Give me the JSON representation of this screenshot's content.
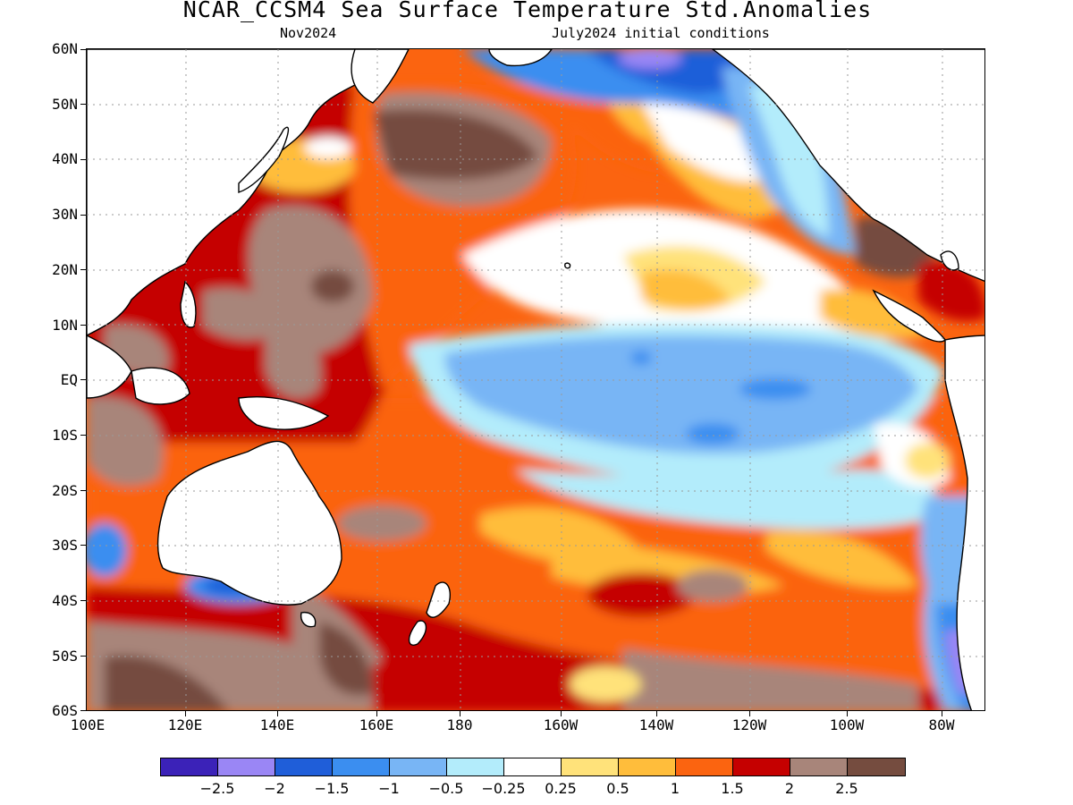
{
  "title": "NCAR_CCSM4 Sea Surface Temperature Std.Anomalies",
  "subtitle_left": "Nov2024",
  "subtitle_right": "July2024 initial conditions",
  "lat_labels": [
    "60N",
    "50N",
    "40N",
    "30N",
    "20N",
    "10N",
    "EQ",
    "10S",
    "20S",
    "30S",
    "40S",
    "50S",
    "60S"
  ],
  "lon_labels": [
    "100E",
    "120E",
    "140E",
    "160E",
    "180",
    "160W",
    "140W",
    "120W",
    "100W",
    "80W"
  ],
  "colorbar": {
    "colors": [
      "#3b22b8",
      "#9a86f5",
      "#1f5ed9",
      "#3b8ef0",
      "#78b5f5",
      "#b3ecfb",
      "#ffffff",
      "#ffe27a",
      "#ffbd3b",
      "#fb6410",
      "#c50000",
      "#a8857a",
      "#754c3f"
    ],
    "labels": [
      "−2.5",
      "−2",
      "−1.5",
      "−1",
      "−0.5",
      "−0.25",
      "0.25",
      "0.5",
      "1",
      "1.5",
      "2",
      "2.5"
    ]
  },
  "map": {
    "projection": "cylindrical equidistant",
    "lon_range": [
      "100E",
      "70W"
    ],
    "lat_range": [
      "60S",
      "60N"
    ],
    "field": "SST standardized anomaly",
    "land_color": "#ffffff",
    "gridlines": "dotted grey"
  }
}
